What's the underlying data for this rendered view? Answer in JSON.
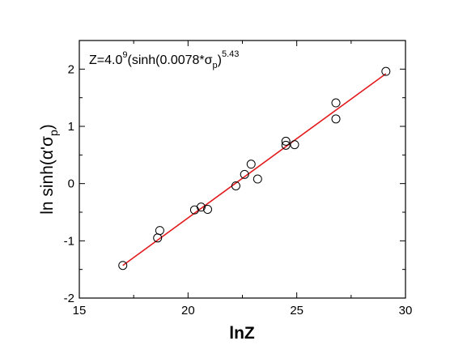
{
  "chart_data": {
    "type": "scatter",
    "title": "",
    "xlabel": "lnZ",
    "ylabel": {
      "main": "ln sinh(α'σ",
      "sub": "p",
      "close": ")"
    },
    "xlim": [
      15,
      30
    ],
    "ylim": [
      -2,
      2.5
    ],
    "x_ticks": [
      15,
      20,
      25,
      30
    ],
    "y_ticks": [
      -2,
      -1,
      0,
      1,
      2
    ],
    "grid": false,
    "legend": "none",
    "annotation": {
      "part1": "Z=4.0",
      "sup1": "9",
      "part2": "(sinh(0.0078*σ",
      "sub1": "p",
      "part3": ")",
      "sup2": "5.43"
    },
    "series": [
      {
        "marker": "open-circle",
        "color": "#000000",
        "points": [
          [
            17.0,
            -1.43
          ],
          [
            18.6,
            -0.95
          ],
          [
            18.7,
            -0.82
          ],
          [
            20.3,
            -0.46
          ],
          [
            20.6,
            -0.41
          ],
          [
            20.9,
            -0.45
          ],
          [
            22.2,
            -0.04
          ],
          [
            22.6,
            0.16
          ],
          [
            22.9,
            0.34
          ],
          [
            23.2,
            0.08
          ],
          [
            24.5,
            0.74
          ],
          [
            24.5,
            0.67
          ],
          [
            24.9,
            0.68
          ],
          [
            26.8,
            1.41
          ],
          [
            26.8,
            1.13
          ],
          [
            29.1,
            1.96
          ]
        ]
      }
    ],
    "fit_line": {
      "color": "#e31a1c",
      "x": [
        17.0,
        29.1
      ],
      "y": [
        -1.43,
        1.92
      ]
    }
  }
}
